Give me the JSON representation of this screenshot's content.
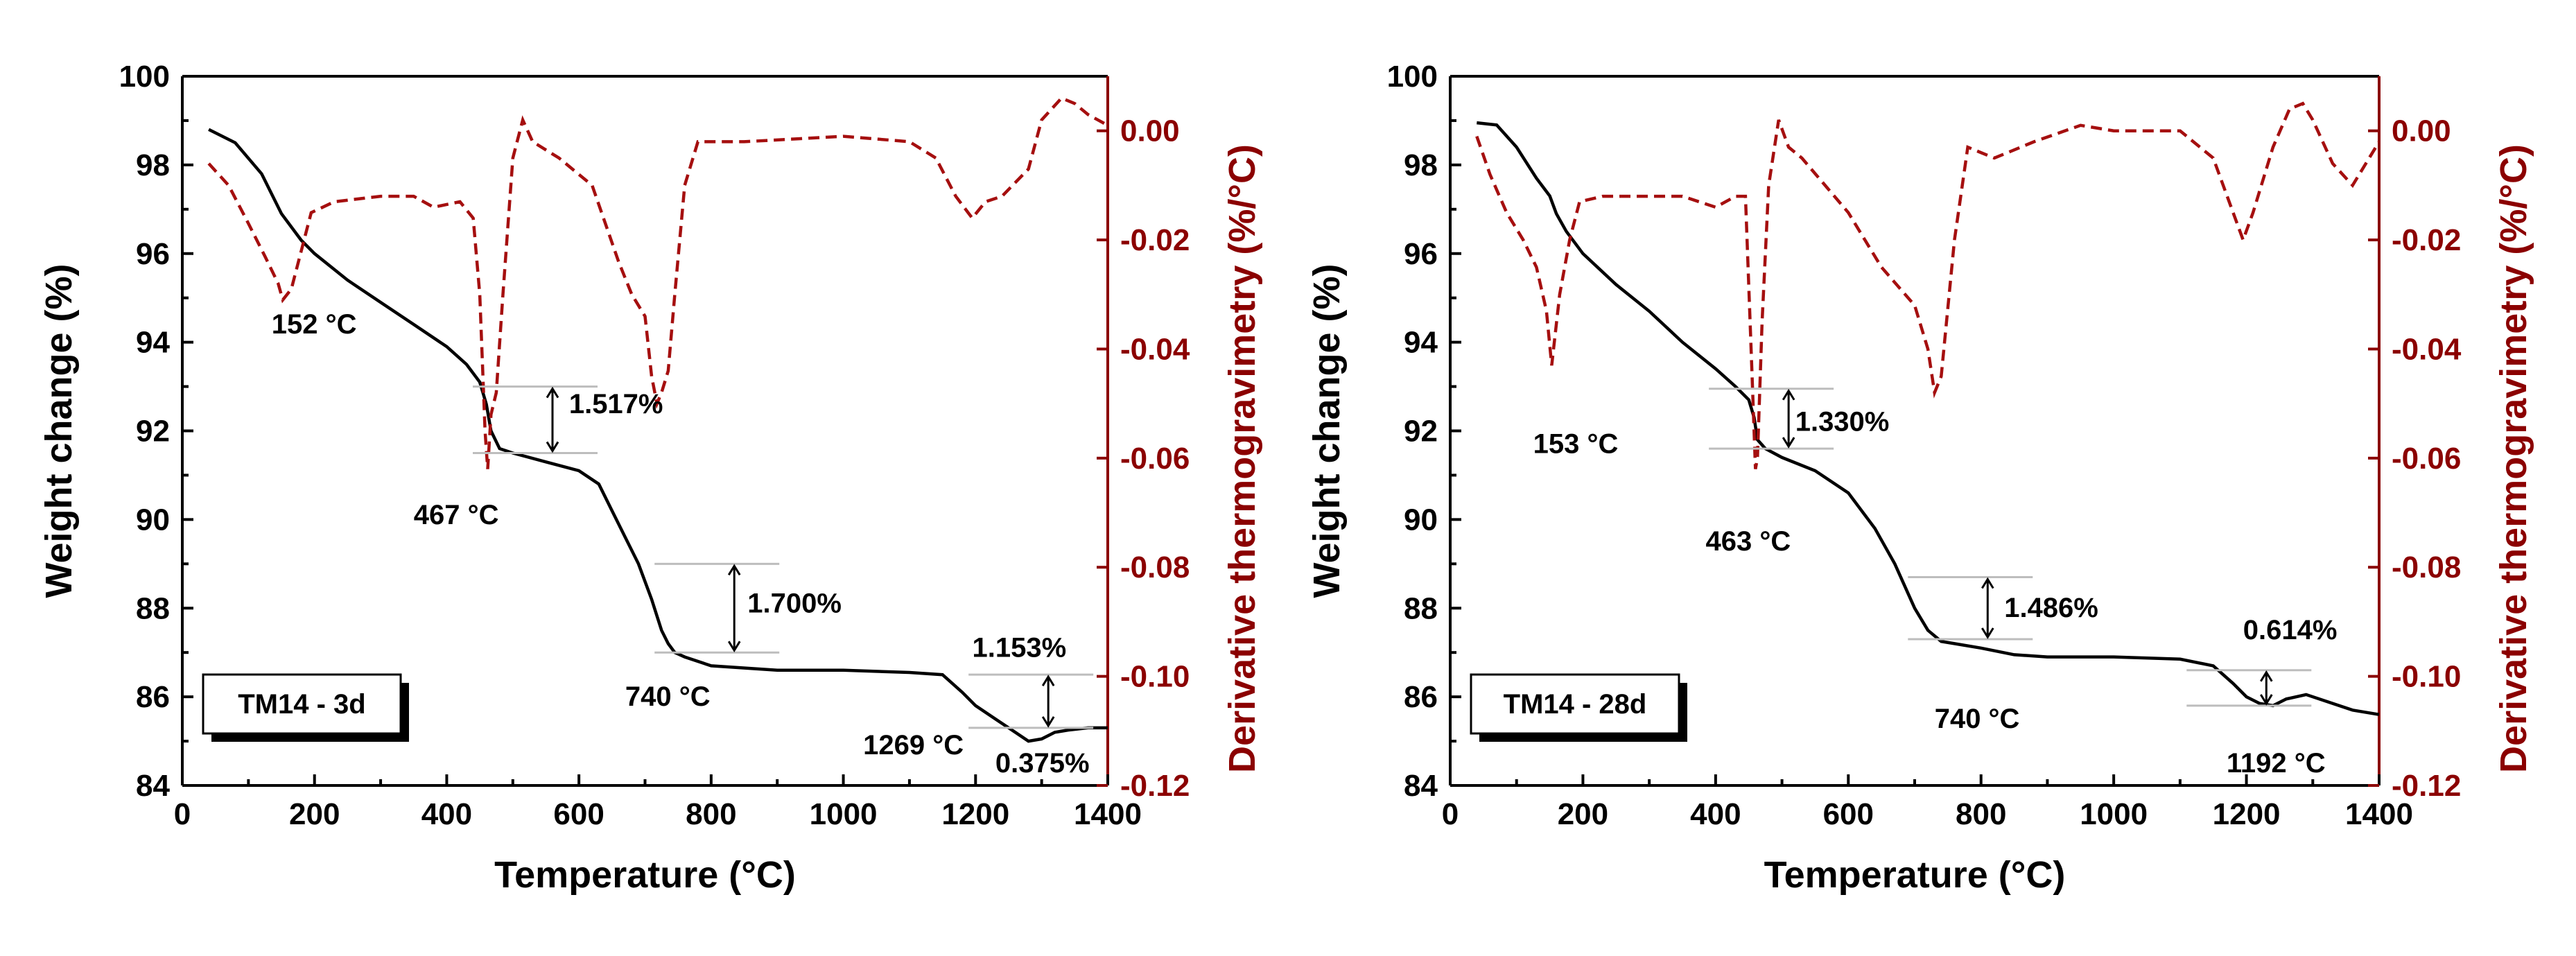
{
  "figure": {
    "shared": {
      "xlabel": "Temperature (°C)",
      "ylabel": "Weight change (%)",
      "y2label": "Derivative thermogravimetry (%/°C)",
      "xlim": [
        0,
        1400
      ],
      "ylim": [
        84,
        100
      ],
      "y2lim": [
        -0.12,
        0.01
      ],
      "x_ticks": [
        "0",
        "200",
        "400",
        "600",
        "800",
        "1000",
        "1200",
        "1400"
      ],
      "y_ticks": [
        "84",
        "86",
        "88",
        "90",
        "92",
        "94",
        "96",
        "98",
        "100"
      ],
      "y2_ticks": [
        "-0.12",
        "-0.10",
        "-0.08",
        "-0.06",
        "-0.04",
        "-0.02",
        "0.00"
      ],
      "colors": {
        "weight": "#000000",
        "dtg": "#a50f0f",
        "axis_right": "#8b0000"
      }
    }
  },
  "chart_data": [
    {
      "type": "line",
      "panel_label": "TM14 - 3d",
      "title": "",
      "xlabel": "Temperature (°C)",
      "ylabel": "Weight change (%)",
      "y2label": "Derivative thermogravimetry (%/°C)",
      "xlim": [
        0,
        1400
      ],
      "ylim": [
        84,
        100
      ],
      "y2lim": [
        -0.12,
        0.01
      ],
      "series": [
        {
          "name": "Weight change",
          "axis": "left",
          "style": "solid",
          "x": [
            40,
            80,
            120,
            150,
            180,
            200,
            250,
            300,
            350,
            400,
            430,
            450,
            460,
            467,
            480,
            500,
            550,
            600,
            630,
            650,
            670,
            690,
            710,
            725,
            735,
            745,
            760,
            800,
            900,
            1000,
            1100,
            1150,
            1180,
            1200,
            1230,
            1260,
            1280,
            1300,
            1320,
            1340,
            1370,
            1400
          ],
          "values": [
            98.8,
            98.5,
            97.8,
            96.9,
            96.3,
            96.0,
            95.4,
            94.9,
            94.4,
            93.9,
            93.5,
            93.1,
            92.6,
            92.0,
            91.6,
            91.5,
            91.3,
            91.1,
            90.8,
            90.2,
            89.6,
            89.0,
            88.2,
            87.5,
            87.2,
            87.0,
            86.9,
            86.7,
            86.6,
            86.6,
            86.55,
            86.5,
            86.1,
            85.8,
            85.5,
            85.2,
            85.0,
            85.05,
            85.2,
            85.25,
            85.3,
            85.3
          ]
        },
        {
          "name": "Derivative thermogravimetry",
          "axis": "right",
          "style": "dashed",
          "x": [
            40,
            70,
            100,
            125,
            145,
            152,
            165,
            180,
            195,
            230,
            300,
            350,
            380,
            420,
            440,
            450,
            458,
            462,
            467,
            475,
            485,
            500,
            515,
            530,
            570,
            620,
            660,
            680,
            700,
            710,
            718,
            725,
            735,
            745,
            760,
            780,
            850,
            1000,
            1100,
            1140,
            1170,
            1195,
            1215,
            1240,
            1280,
            1300,
            1330,
            1350,
            1370,
            1400
          ],
          "values": [
            -0.006,
            -0.01,
            -0.017,
            -0.023,
            -0.028,
            -0.031,
            -0.029,
            -0.022,
            -0.015,
            -0.013,
            -0.012,
            -0.012,
            -0.014,
            -0.013,
            -0.016,
            -0.03,
            -0.055,
            -0.062,
            -0.052,
            -0.048,
            -0.03,
            -0.005,
            0.002,
            -0.002,
            -0.005,
            -0.01,
            -0.024,
            -0.03,
            -0.034,
            -0.045,
            -0.05,
            -0.048,
            -0.044,
            -0.03,
            -0.01,
            -0.002,
            -0.002,
            -0.001,
            -0.002,
            -0.005,
            -0.012,
            -0.016,
            -0.013,
            -0.012,
            -0.007,
            0.002,
            0.006,
            0.005,
            0.003,
            0.001
          ]
        }
      ],
      "annotations": [
        {
          "text": "152 °C",
          "x": 135,
          "y": 94.2
        },
        {
          "text": "467 °C",
          "x": 350,
          "y": 89.9
        },
        {
          "text": "740 °C",
          "x": 670,
          "y": 85.8
        },
        {
          "text": "1269 °C",
          "x": 1030,
          "y": 84.7
        },
        {
          "text": "1.517%",
          "x": 585,
          "y": 92.4
        },
        {
          "text": "1.700%",
          "x": 855,
          "y": 87.9
        },
        {
          "text": "1.153%",
          "x": 1195,
          "y": 86.9
        },
        {
          "text": "0.375%",
          "x": 1230,
          "y": 84.3
        }
      ],
      "steps": [
        {
          "label": "1.517%",
          "x": 560,
          "y_top": 93.0,
          "y_bottom": 91.5
        },
        {
          "label": "1.700%",
          "x": 835,
          "y_top": 89.0,
          "y_bottom": 87.0
        },
        {
          "label": "1.153%",
          "x": 1310,
          "y_top": 86.5,
          "y_bottom": 85.3
        }
      ]
    },
    {
      "type": "line",
      "panel_label": "TM14 - 28d",
      "title": "",
      "xlabel": "Temperature (°C)",
      "ylabel": "Weight change (%)",
      "y2label": "Derivative thermogravimetry (%/°C)",
      "xlim": [
        0,
        1400
      ],
      "ylim": [
        84,
        100
      ],
      "y2lim": [
        -0.12,
        0.01
      ],
      "series": [
        {
          "name": "Weight change",
          "axis": "left",
          "style": "solid",
          "x": [
            40,
            70,
            100,
            130,
            150,
            160,
            175,
            200,
            250,
            300,
            350,
            400,
            430,
            450,
            458,
            463,
            475,
            500,
            550,
            600,
            640,
            670,
            700,
            720,
            740,
            760,
            800,
            850,
            900,
            1000,
            1100,
            1150,
            1180,
            1200,
            1220,
            1240,
            1260,
            1290,
            1320,
            1360,
            1400
          ],
          "values": [
            98.95,
            98.9,
            98.4,
            97.7,
            97.3,
            96.9,
            96.5,
            96.0,
            95.3,
            94.7,
            94.0,
            93.4,
            93.0,
            92.7,
            92.3,
            91.8,
            91.6,
            91.4,
            91.1,
            90.6,
            89.8,
            89.0,
            88.0,
            87.5,
            87.25,
            87.2,
            87.1,
            86.95,
            86.9,
            86.9,
            86.85,
            86.7,
            86.3,
            86.0,
            85.85,
            85.8,
            85.95,
            86.05,
            85.9,
            85.7,
            85.6
          ]
        },
        {
          "name": "Derivative thermogravimetry",
          "axis": "right",
          "style": "dashed",
          "x": [
            40,
            60,
            85,
            110,
            130,
            145,
            153,
            165,
            180,
            195,
            230,
            300,
            350,
            400,
            430,
            445,
            455,
            460,
            463,
            470,
            480,
            495,
            510,
            530,
            600,
            650,
            700,
            720,
            730,
            740,
            760,
            780,
            820,
            880,
            950,
            1000,
            1100,
            1150,
            1180,
            1195,
            1210,
            1240,
            1265,
            1285,
            1300,
            1330,
            1360,
            1400
          ],
          "values": [
            -0.001,
            -0.008,
            -0.015,
            -0.02,
            -0.025,
            -0.033,
            -0.043,
            -0.03,
            -0.02,
            -0.013,
            -0.012,
            -0.012,
            -0.012,
            -0.014,
            -0.012,
            -0.012,
            -0.045,
            -0.062,
            -0.06,
            -0.035,
            -0.01,
            0.002,
            -0.003,
            -0.005,
            -0.015,
            -0.025,
            -0.032,
            -0.04,
            -0.048,
            -0.045,
            -0.02,
            -0.003,
            -0.005,
            -0.002,
            0.001,
            0.0,
            0.0,
            -0.005,
            -0.015,
            -0.02,
            -0.015,
            -0.003,
            0.004,
            0.005,
            0.002,
            -0.006,
            -0.01,
            -0.002
          ]
        }
      ],
      "annotations": [
        {
          "text": "153 °C",
          "x": 125,
          "y": 91.5
        },
        {
          "text": "463 °C",
          "x": 385,
          "y": 89.3
        },
        {
          "text": "740 °C",
          "x": 730,
          "y": 85.3
        },
        {
          "text": "1192 °C",
          "x": 1170,
          "y": 84.3
        },
        {
          "text": "1.330%",
          "x": 520,
          "y": 92.0
        },
        {
          "text": "1.486%",
          "x": 835,
          "y": 87.8
        },
        {
          "text": "0.614%",
          "x": 1195,
          "y": 87.3
        }
      ],
      "steps": [
        {
          "label": "1.330%",
          "x": 510,
          "y_top": 92.95,
          "y_bottom": 91.6
        },
        {
          "label": "1.486%",
          "x": 810,
          "y_top": 88.7,
          "y_bottom": 87.3
        },
        {
          "label": "0.614%",
          "x": 1230,
          "y_top": 86.6,
          "y_bottom": 85.8
        }
      ]
    }
  ]
}
